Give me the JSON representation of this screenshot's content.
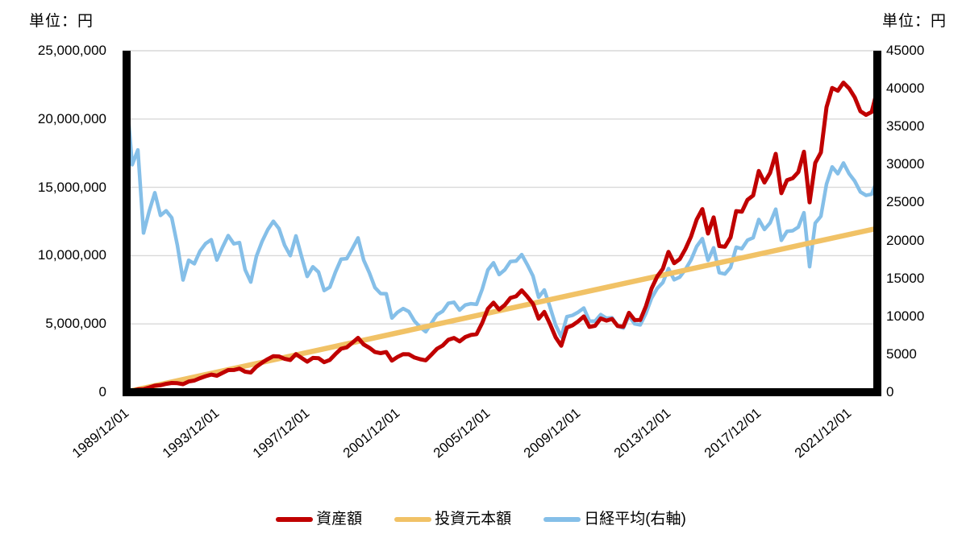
{
  "units": {
    "left": "単位：円",
    "right": "単位：円"
  },
  "legend": [
    {
      "label": "資産額",
      "color": "#c00000"
    },
    {
      "label": "投資元本額",
      "color": "#f1c266"
    },
    {
      "label": "日経平均(右軸)",
      "color": "#85bfe8"
    }
  ],
  "chart_data": {
    "type": "line",
    "title": "",
    "grid": {
      "horizontal": true,
      "vertical": false,
      "color": "#d9d9d9"
    },
    "x_axis": {
      "tick_labels": [
        "1989/12/01",
        "1993/12/01",
        "1997/12/01",
        "2001/12/01",
        "2005/12/01",
        "2009/12/01",
        "2013/12/01",
        "2017/12/01",
        "2021/12/01"
      ],
      "tick_months": [
        0,
        48,
        96,
        144,
        192,
        240,
        288,
        336,
        384
      ],
      "total_months": 399,
      "start_date": "1989/12/01"
    },
    "left_axis": {
      "unit": "単位：円",
      "min": 0,
      "max": 25000000,
      "tick_step": 5000000,
      "tick_labels": [
        "0",
        "5,000,000",
        "10,000,000",
        "15,000,000",
        "20,000,000",
        "25,000,000"
      ]
    },
    "right_axis": {
      "unit": "単位：円",
      "min": 0,
      "max": 45000,
      "tick_step": 5000,
      "tick_labels": [
        "0",
        "5000",
        "10000",
        "15000",
        "20000",
        "25000",
        "30000",
        "35000",
        "40000",
        "45000"
      ]
    },
    "sample_months_step": 3,
    "series": [
      {
        "id": "asset",
        "name": "資産額",
        "axis": "left",
        "color": "#c00000",
        "stroke_width": 5,
        "values": [
          30000,
          113000,
          210000,
          228000,
          349000,
          475000,
          511000,
          615000,
          681000,
          663000,
          591000,
          784000,
          853000,
          1027000,
          1172000,
          1293000,
          1210000,
          1418000,
          1622000,
          1627000,
          1730000,
          1506000,
          1444000,
          1872000,
          2166000,
          2424000,
          2642000,
          2617000,
          2441000,
          2360000,
          2791000,
          2513000,
          2233000,
          2509000,
          2493000,
          2201000,
          2363000,
          2793000,
          3182000,
          3286000,
          3624000,
          3982000,
          3499000,
          3255000,
          2940000,
          2862000,
          2945000,
          2310000,
          2581000,
          2789000,
          2777000,
          2543000,
          2415000,
          2335000,
          2750000,
          3184000,
          3417000,
          3839000,
          3976000,
          3719000,
          4037000,
          4190000,
          4250000,
          5070000,
          6108000,
          6558000,
          6050000,
          6383000,
          6907000,
          7022000,
          7457000,
          6992000,
          6466000,
          5381000,
          5881000,
          5002000,
          4026000,
          3400000,
          4726000,
          4899000,
          5188000,
          5546000,
          4782000,
          4865000,
          5402000,
          5241000,
          5364000,
          4844000,
          4798000,
          5812000,
          5281000,
          5291000,
          6291000,
          7593000,
          8467000,
          9039000,
          10276000,
          9443000,
          9746000,
          10486000,
          11404000,
          12642000,
          13410000,
          11613000,
          12801000,
          10700000,
          10649000,
          11337000,
          13263000,
          13211000,
          14086000,
          14403000,
          16197000,
          15355000,
          16054000,
          17450000,
          14570000,
          15527000,
          15668000,
          16112000,
          17609000,
          13900000,
          16787000,
          17552000,
          20867000,
          22275000,
          22070000,
          22667000,
          22248000,
          21589000,
          20570000,
          20304000,
          20518000,
          22138000
        ]
      },
      {
        "id": "principal",
        "name": "投資元本額",
        "axis": "left",
        "color": "#f1c266",
        "stroke_width": 6.5,
        "points_months": [
          0,
          399
        ],
        "values": [
          30000,
          12000000
        ]
      },
      {
        "id": "nikkei",
        "name": "日経平均(右軸)",
        "axis": "right",
        "color": "#85bfe8",
        "stroke_width": 4.5,
        "values": [
          38916,
          29980,
          31940,
          20984,
          23849,
          26292,
          23291,
          23916,
          22984,
          19346,
          14800,
          17399,
          16925,
          18591,
          19590,
          20106,
          17417,
          19112,
          20644,
          19564,
          19723,
          16140,
          14517,
          17913,
          19868,
          21407,
          22531,
          21556,
          19361,
          18003,
          20605,
          17888,
          15259,
          16527,
          15830,
          13406,
          13842,
          15837,
          17530,
          17605,
          18934,
          20337,
          17411,
          15747,
          13786,
          12999,
          12969,
          9775,
          10543,
          11025,
          10622,
          9383,
          8579,
          7973,
          9083,
          10219,
          10677,
          11715,
          11859,
          10824,
          11489,
          11669,
          11584,
          13574,
          16111,
          17060,
          15505,
          16128,
          17226,
          17288,
          18138,
          16786,
          15308,
          12526,
          13481,
          11260,
          8860,
          7300,
          9958,
          10133,
          10546,
          11090,
          9383,
          9369,
          10229,
          9755,
          9816,
          8700,
          8455,
          10084,
          9007,
          8870,
          10395,
          12398,
          13677,
          14456,
          16291,
          14828,
          15162,
          16174,
          17451,
          19207,
          20236,
          17388,
          19034,
          15750,
          15576,
          16450,
          19114,
          18909,
          20033,
          20356,
          22765,
          21454,
          22305,
          24120,
          20015,
          21206,
          21276,
          21756,
          23657,
          16550,
          22288,
          23185,
          27444,
          29700,
          28792,
          30200,
          28792,
          27821,
          26393,
          25937,
          26095,
          28041
        ]
      }
    ]
  }
}
